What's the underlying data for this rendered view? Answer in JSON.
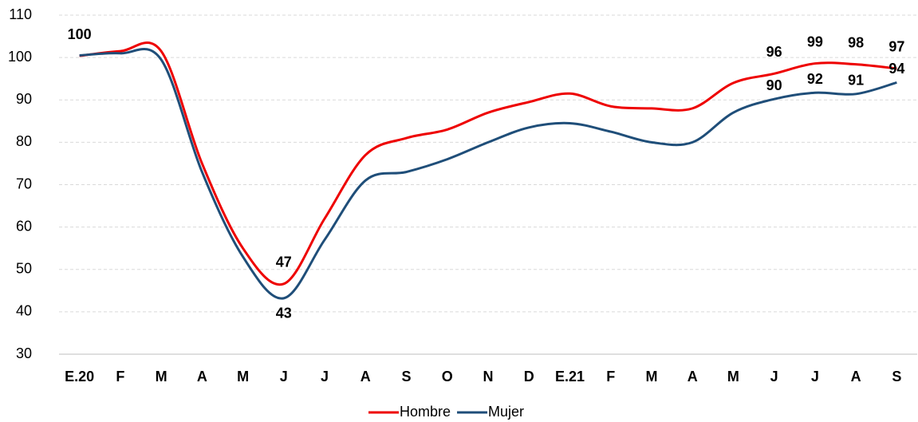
{
  "chart_data": {
    "type": "line",
    "categories": [
      "E.20",
      "F",
      "M",
      "A",
      "M",
      "J",
      "J",
      "A",
      "S",
      "O",
      "N",
      "D",
      "E.21",
      "F",
      "M",
      "A",
      "M",
      "J",
      "J",
      "A",
      "S"
    ],
    "series": [
      {
        "name": "Hombre",
        "color": "#ee0000",
        "values": [
          100.4,
          101.5,
          101.5,
          75,
          55,
          46.6,
          62,
          77,
          81,
          83,
          87,
          89.5,
          91.5,
          88.5,
          88,
          88,
          94,
          96.2,
          98.6,
          98.4,
          97.4
        ],
        "value_labels": [
          "100",
          null,
          null,
          null,
          null,
          "47",
          null,
          null,
          null,
          null,
          null,
          null,
          null,
          null,
          null,
          null,
          null,
          "96",
          "99",
          "98",
          "97"
        ]
      },
      {
        "name": "Mujer",
        "color": "#1f4e79",
        "values": [
          100.5,
          101,
          99.5,
          73,
          53,
          43.2,
          57,
          71,
          73,
          76,
          80,
          83.5,
          84.5,
          82.5,
          80,
          80,
          87,
          90.2,
          91.7,
          91.4,
          94.1
        ],
        "value_labels": [
          null,
          null,
          null,
          null,
          null,
          "43",
          null,
          null,
          null,
          null,
          null,
          null,
          null,
          null,
          null,
          null,
          null,
          "90",
          "92",
          "91",
          "94"
        ]
      }
    ],
    "ylim": [
      30,
      110
    ],
    "yticks": [
      30,
      40,
      50,
      60,
      70,
      80,
      90,
      100,
      110
    ],
    "grid": true,
    "legend": "bottom"
  }
}
